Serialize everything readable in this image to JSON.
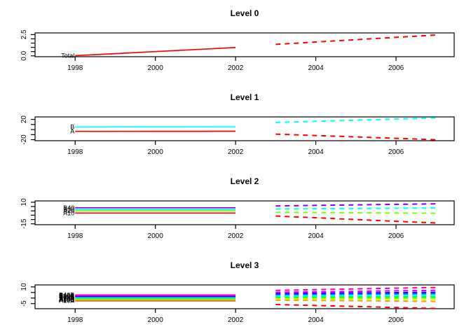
{
  "figure": {
    "description": "Hierarchical time series plot with historical lines (1998-2002) and dashed forecasts (2003-2007)",
    "background": "#FFFFFF",
    "axis_color": "#000000",
    "text_color": "#000000"
  },
  "chart_data": [
    {
      "type": "line",
      "title": "Level 0",
      "xlim": [
        1997.0,
        2007.45
      ],
      "ylim": [
        -0.1,
        2.7
      ],
      "xticks": [
        1998,
        2000,
        2002,
        2004,
        2006
      ],
      "yticks": [
        0,
        0.5,
        1,
        1.5,
        2,
        2.5
      ],
      "ytick_labels": [
        {
          "v": 0,
          "t": "0.0"
        },
        {
          "v": 2.5,
          "t": "2.5"
        }
      ],
      "grid": false,
      "x_solid": [
        1998,
        1999,
        2000,
        2001,
        2002
      ],
      "x_dashed": [
        2003,
        2004,
        2005,
        2006,
        2007
      ],
      "series": [
        {
          "name": "Total",
          "label": "Total",
          "color": "#FF0000",
          "solid": [
            0.02,
            0.26,
            0.5,
            0.74,
            0.98
          ],
          "dashed": [
            1.35,
            1.63,
            1.9,
            2.18,
            2.45
          ]
        }
      ]
    },
    {
      "type": "line",
      "title": "Level 1",
      "xlim": [
        1997.0,
        2007.45
      ],
      "ylim": [
        -22,
        25
      ],
      "xticks": [
        1998,
        2000,
        2002,
        2004,
        2006
      ],
      "yticks": [
        -20,
        -10,
        0,
        10,
        20
      ],
      "ytick_labels": [
        {
          "v": -20,
          "t": "-20"
        },
        {
          "v": 20,
          "t": "20"
        }
      ],
      "grid": false,
      "x_solid": [
        1998,
        1999,
        2000,
        2001,
        2002
      ],
      "x_dashed": [
        2003,
        2004,
        2005,
        2006,
        2007
      ],
      "series": [
        {
          "name": "A",
          "label": "A",
          "color": "#FF0000",
          "solid": [
            -3.6,
            -3.55,
            -3.5,
            -3.45,
            -3.4
          ],
          "dashed": [
            -9,
            -11.8,
            -14.5,
            -17.3,
            -20
          ]
        },
        {
          "name": "B",
          "label": "B",
          "color": "#00FFFF",
          "solid": [
            5.0,
            5.07,
            5.15,
            5.22,
            5.3
          ],
          "dashed": [
            14,
            16.3,
            18.5,
            20.8,
            23
          ]
        }
      ]
    },
    {
      "type": "line",
      "title": "Level 2",
      "xlim": [
        1997.0,
        2007.45
      ],
      "ylim": [
        -16,
        11.5
      ],
      "xticks": [
        1998,
        2000,
        2002,
        2004,
        2006
      ],
      "yticks": [
        -15,
        -10,
        -5,
        0,
        5,
        10
      ],
      "ytick_labels": [
        {
          "v": -15,
          "t": "-15"
        },
        {
          "v": 10,
          "t": "10"
        }
      ],
      "grid": false,
      "x_solid": [
        1998,
        1999,
        2000,
        2001,
        2002
      ],
      "x_dashed": [
        2003,
        2004,
        2005,
        2006,
        2007
      ],
      "series": [
        {
          "name": "A10",
          "label": "A10",
          "color": "#FF0000",
          "solid": [
            -2.5,
            -2.5,
            -2.5,
            -2.5,
            -2.5
          ],
          "dashed": [
            -6,
            -8,
            -10,
            -12,
            -14
          ]
        },
        {
          "name": "A20",
          "label": "A20",
          "color": "#80FF00",
          "solid": [
            0,
            0,
            0,
            0,
            0
          ],
          "dashed": [
            -1.8,
            -2.0,
            -2.2,
            -2.5,
            -2.7
          ]
        },
        {
          "name": "B30",
          "label": "B30",
          "color": "#00FFFF",
          "solid": [
            1.6,
            1.6,
            1.6,
            1.6,
            1.6
          ],
          "dashed": [
            2.2,
            2.5,
            2.8,
            3.0,
            3.3
          ]
        },
        {
          "name": "B40",
          "label": "B40",
          "color": "#8000FF",
          "solid": [
            3.6,
            3.6,
            3.6,
            3.6,
            3.6
          ],
          "dashed": [
            5.7,
            6.3,
            6.9,
            7.5,
            8.1
          ]
        }
      ]
    },
    {
      "type": "line",
      "title": "Level 3",
      "xlim": [
        1997.0,
        2007.45
      ],
      "ylim": [
        -9.6,
        11.8
      ],
      "xticks": [
        1998,
        2000,
        2002,
        2004,
        2006
      ],
      "yticks": [
        -5,
        0,
        5,
        10
      ],
      "ytick_labels": [
        {
          "v": -5,
          "t": "-5"
        },
        {
          "v": 10,
          "t": "10"
        }
      ],
      "grid": false,
      "x_solid": [
        1998,
        1999,
        2000,
        2001,
        2002
      ],
      "x_dashed": [
        2003,
        2004,
        2005,
        2006,
        2007
      ],
      "series": [
        {
          "name": "A10A",
          "label": "A10A",
          "color": "#FF0000",
          "solid": [
            -2.5,
            -2.5,
            -2.5,
            -2.5,
            -2.5
          ],
          "dashed": [
            -5.8,
            -6.7,
            -7.6,
            -8.5,
            -9.4
          ]
        },
        {
          "name": "A10B",
          "label": "A10B",
          "color": "#FF9900",
          "solid": [
            -1.9,
            -1.9,
            -1.9,
            -1.9,
            -1.9
          ],
          "dashed": [
            -1.9,
            -2.2,
            -2.4,
            -2.7,
            -3.0
          ]
        },
        {
          "name": "A10C",
          "label": "A10C",
          "color": "#CCFF00",
          "solid": [
            -1.3,
            -1.3,
            -1.3,
            -1.3,
            -1.3
          ],
          "dashed": [
            -0.7,
            -0.85,
            -1.0,
            -1.1,
            -1.2
          ]
        },
        {
          "name": "A20A",
          "label": "A20A",
          "color": "#33FF00",
          "solid": [
            -0.7,
            -0.7,
            -0.7,
            -0.7,
            -0.7
          ],
          "dashed": [
            0.3,
            0.27,
            0.25,
            0.22,
            0.2
          ]
        },
        {
          "name": "A20B",
          "label": "A20B",
          "color": "#00FF66",
          "solid": [
            -0.1,
            -0.1,
            -0.1,
            -0.1,
            -0.1
          ],
          "dashed": [
            1.2,
            1.25,
            1.3,
            1.35,
            1.4
          ]
        },
        {
          "name": "B30A",
          "label": "B30A",
          "color": "#00FFFF",
          "solid": [
            0.5,
            0.5,
            0.5,
            0.5,
            0.5
          ],
          "dashed": [
            2.2,
            2.35,
            2.5,
            2.65,
            2.8
          ]
        },
        {
          "name": "B30B",
          "label": "B30B",
          "color": "#0066FF",
          "solid": [
            1.05,
            1.05,
            1.05,
            1.05,
            1.05
          ],
          "dashed": [
            3.1,
            3.35,
            3.55,
            3.8,
            4.0
          ]
        },
        {
          "name": "B30C",
          "label": "B30C",
          "color": "#3300FF",
          "solid": [
            1.6,
            1.6,
            1.6,
            1.6,
            1.6
          ],
          "dashed": [
            4.0,
            4.3,
            4.6,
            4.9,
            5.2
          ]
        },
        {
          "name": "B40A",
          "label": "B40A",
          "color": "#CC00FF",
          "solid": [
            2.2,
            2.2,
            2.2,
            2.2,
            2.2
          ],
          "dashed": [
            5.2,
            5.6,
            6.0,
            6.5,
            6.9
          ]
        },
        {
          "name": "B40B",
          "label": "B40B",
          "color": "#FF0099",
          "solid": [
            2.8,
            2.8,
            2.8,
            2.8,
            2.8
          ],
          "dashed": [
            6.8,
            7.5,
            8.2,
            8.9,
            9.5
          ]
        }
      ]
    }
  ]
}
